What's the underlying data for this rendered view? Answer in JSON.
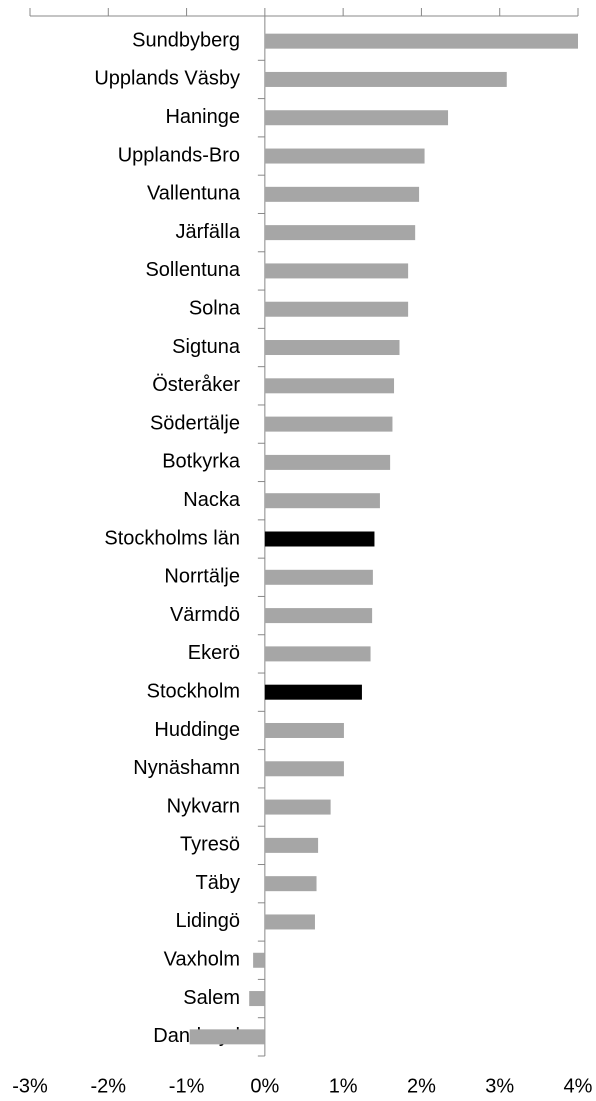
{
  "chart_data": {
    "type": "barh",
    "categories": [
      "Sundbyberg",
      "Upplands Väsby",
      "Haninge",
      "Upplands-Bro",
      "Vallentuna",
      "Järfälla",
      "Sollentuna",
      "Solna",
      "Sigtuna",
      "Österåker",
      "Södertälje",
      "Botkyrka",
      "Nacka",
      "Stockholms län",
      "Norrtälje",
      "Värmdö",
      "Ekerö",
      "Stockholm",
      "Huddinge",
      "Nynäshamn",
      "Nykvarn",
      "Tyresö",
      "Täby",
      "Lidingö",
      "Vaxholm",
      "Salem",
      "Danderyd"
    ],
    "values": [
      4.0,
      3.09,
      2.34,
      2.04,
      1.97,
      1.92,
      1.83,
      1.83,
      1.72,
      1.65,
      1.63,
      1.6,
      1.47,
      1.4,
      1.38,
      1.37,
      1.35,
      1.24,
      1.01,
      1.01,
      0.84,
      0.68,
      0.66,
      0.64,
      -0.15,
      -0.2,
      -0.96
    ],
    "colors": [
      "#a6a6a6",
      "#a6a6a6",
      "#a6a6a6",
      "#a6a6a6",
      "#a6a6a6",
      "#a6a6a6",
      "#a6a6a6",
      "#a6a6a6",
      "#a6a6a6",
      "#a6a6a6",
      "#a6a6a6",
      "#a6a6a6",
      "#a6a6a6",
      "#000000",
      "#a6a6a6",
      "#a6a6a6",
      "#a6a6a6",
      "#000000",
      "#a6a6a6",
      "#a6a6a6",
      "#a6a6a6",
      "#a6a6a6",
      "#a6a6a6",
      "#a6a6a6",
      "#a6a6a6",
      "#a6a6a6",
      "#a6a6a6"
    ],
    "xlim": [
      -3,
      4
    ],
    "xticks": [
      {
        "value": -3,
        "label": "-3%"
      },
      {
        "value": -2,
        "label": "-2%"
      },
      {
        "value": -1,
        "label": "-1%"
      },
      {
        "value": 0,
        "label": "0%"
      },
      {
        "value": 1,
        "label": "1%"
      },
      {
        "value": 2,
        "label": "2%"
      },
      {
        "value": 3,
        "label": "3%"
      },
      {
        "value": 4,
        "label": "4%"
      }
    ]
  }
}
